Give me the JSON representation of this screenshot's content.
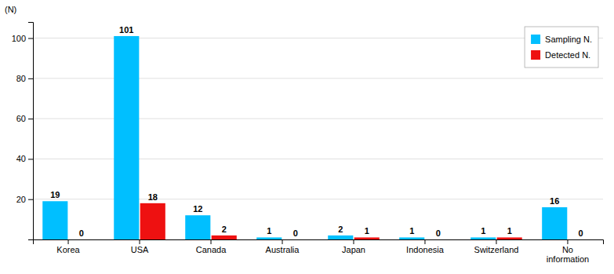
{
  "chart_data": {
    "type": "bar",
    "categories": [
      "Korea",
      "USA",
      "Canada",
      "Australia",
      "Japan",
      "Indonesia",
      "Switzerland",
      "No\ninformation"
    ],
    "series": [
      {
        "name": "Sampling N.",
        "color": "#00BFFF",
        "values": [
          19,
          101,
          12,
          1,
          2,
          1,
          1,
          16
        ]
      },
      {
        "name": "Detected N.",
        "color": "#EE1111",
        "values": [
          0,
          18,
          2,
          0,
          1,
          0,
          1,
          0
        ]
      }
    ],
    "ylabel": "(N)",
    "ylim": [
      0,
      108
    ],
    "yticks": [
      20,
      40,
      60,
      80,
      100
    ],
    "grid": true,
    "legend": "upper right",
    "data_labels": true
  }
}
